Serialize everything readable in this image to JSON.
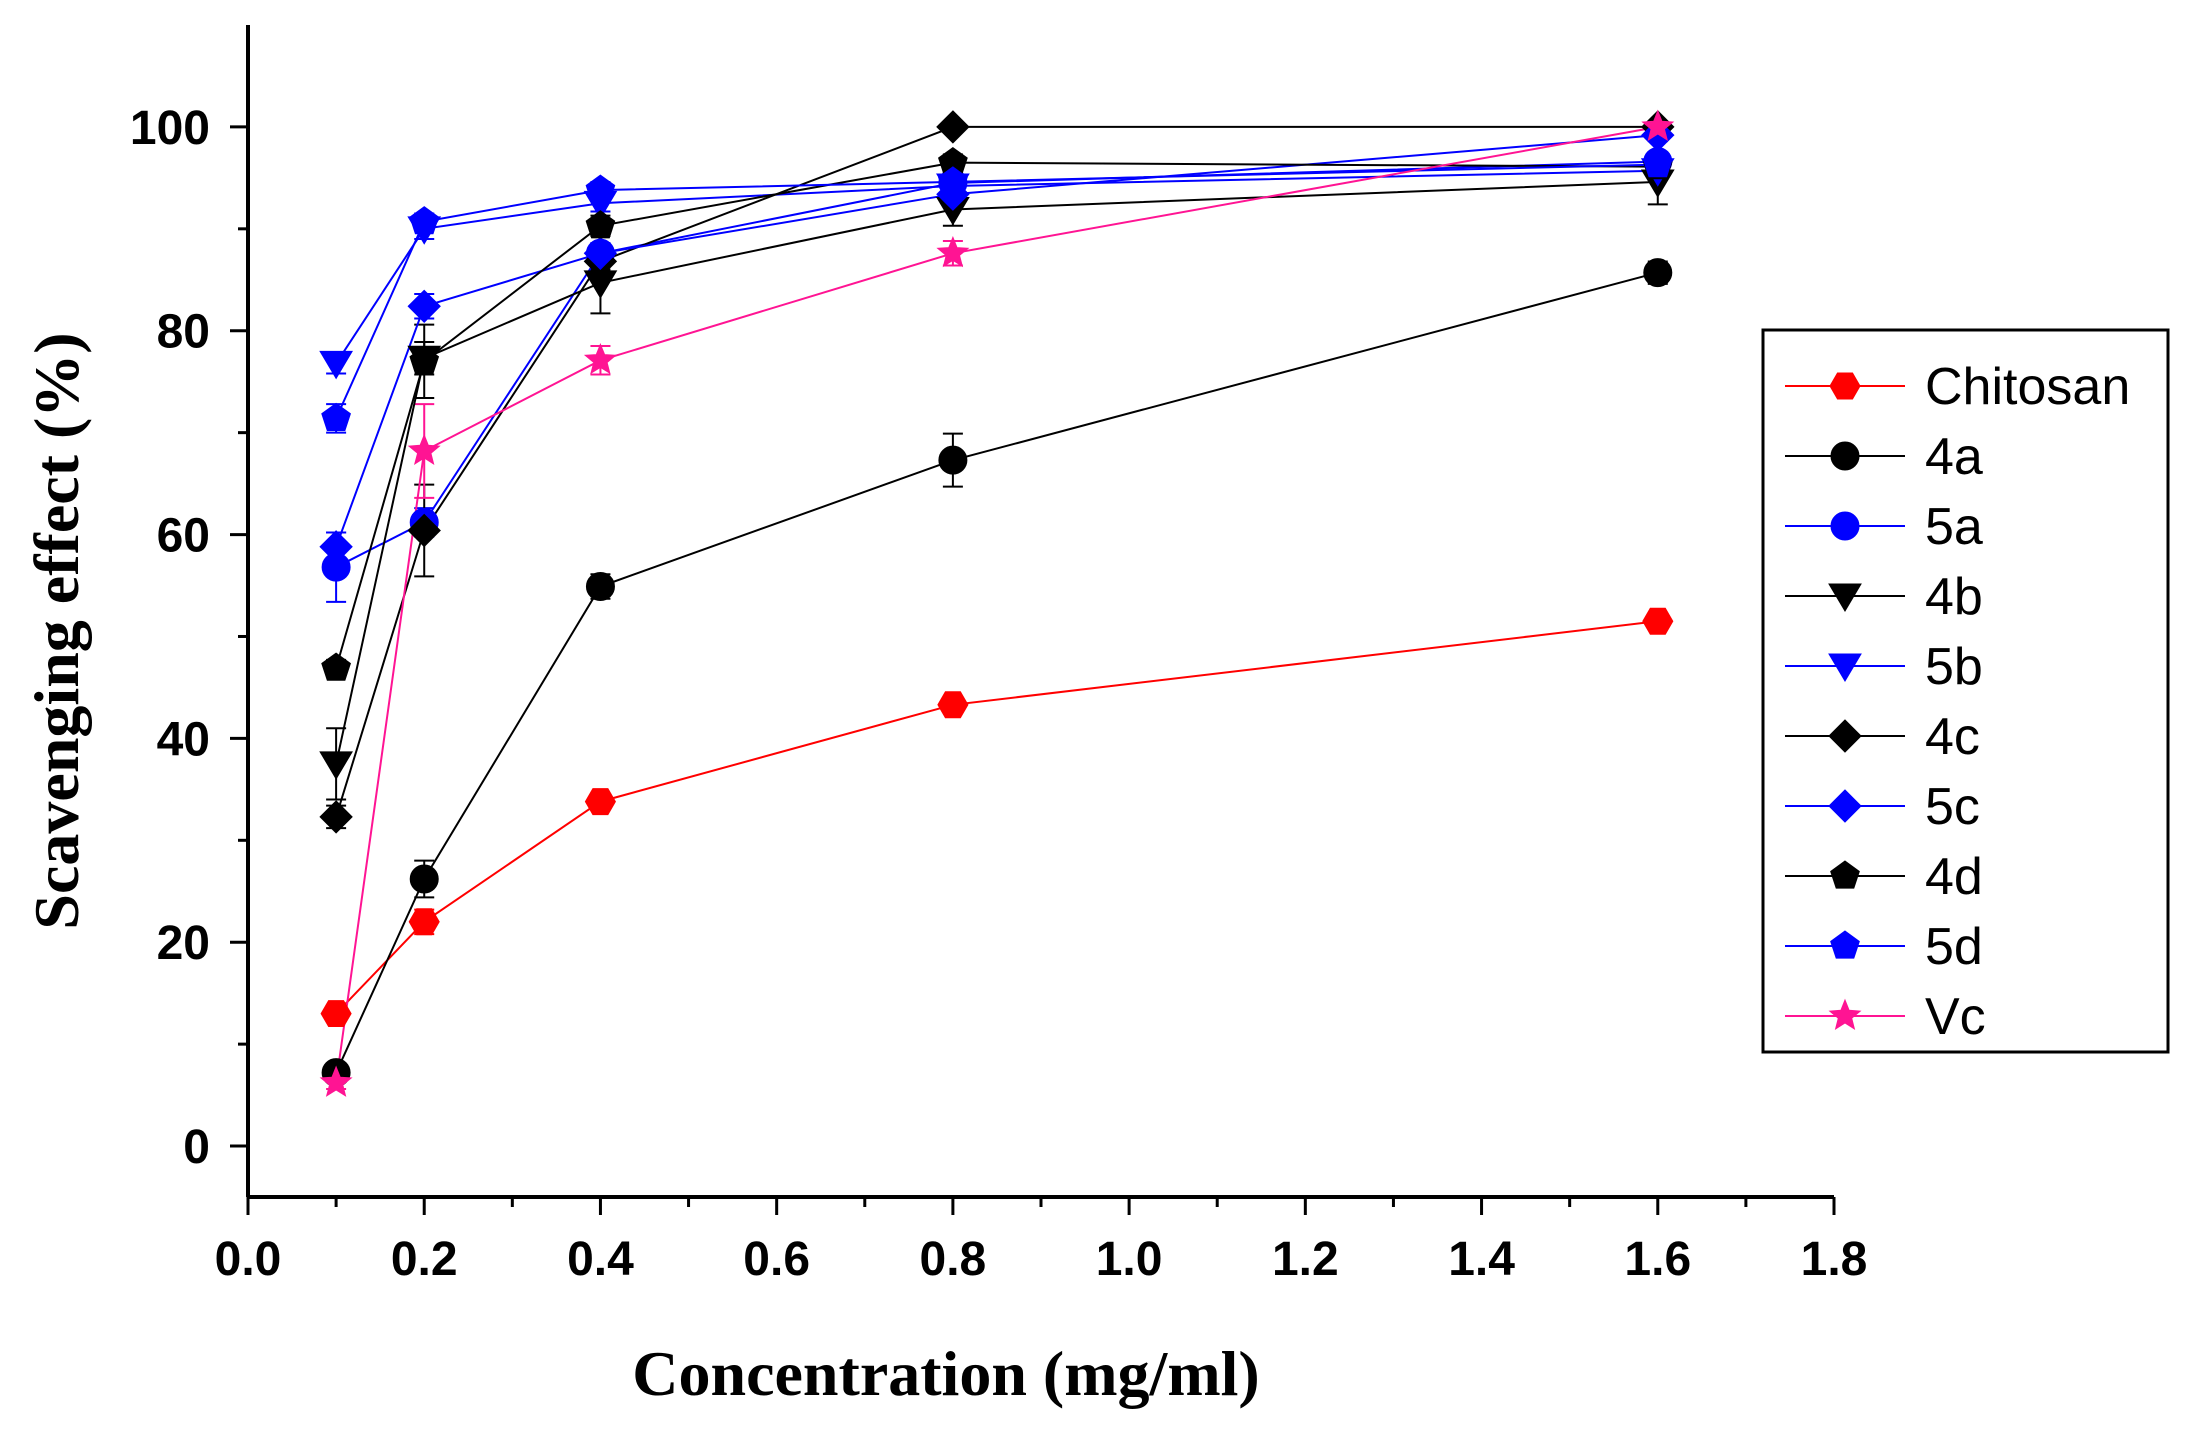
{
  "chart_data": {
    "type": "line",
    "title": "",
    "xlabel": "Concentration (mg/ml)",
    "ylabel": "Scavenging effect (%)",
    "xlim": [
      0.0,
      1.8
    ],
    "ylim": [
      -5,
      110
    ],
    "x_ticks": [
      0.0,
      0.2,
      0.4,
      0.6,
      0.8,
      1.0,
      1.2,
      1.4,
      1.6,
      1.8
    ],
    "x_tick_labels": [
      "0.0",
      "0.2",
      "0.4",
      "0.6",
      "0.8",
      "1.0",
      "1.2",
      "1.4",
      "1.6",
      "1.8"
    ],
    "y_ticks": [
      0,
      20,
      40,
      60,
      80,
      100
    ],
    "y_tick_labels": [
      "0",
      "20",
      "40",
      "60",
      "80",
      "100"
    ],
    "grid": false,
    "legend_position": "right",
    "x": [
      0.1,
      0.2,
      0.4,
      0.8,
      1.6
    ],
    "series": [
      {
        "name": "Chitosan",
        "color": "#ff0000",
        "marker": "hexagon",
        "values": [
          13.0,
          22.0,
          33.8,
          43.3,
          51.5
        ],
        "errors": [
          0.8,
          1.2,
          0.6,
          0.7,
          0.6
        ]
      },
      {
        "name": "4a",
        "color": "#000000",
        "marker": "circle",
        "values": [
          7.2,
          26.2,
          54.9,
          67.3,
          85.7
        ],
        "errors": [
          0.6,
          1.8,
          1.2,
          2.6,
          1.1
        ]
      },
      {
        "name": "5a",
        "color": "#0000ff",
        "marker": "circle",
        "values": [
          56.8,
          61.2,
          87.6,
          94.5,
          96.6
        ],
        "errors": [
          3.4,
          1.4,
          1.0,
          1.0,
          0.8
        ]
      },
      {
        "name": "4b",
        "color": "#000000",
        "marker": "triangle-down",
        "values": [
          37.5,
          77.3,
          84.7,
          91.9,
          94.6
        ],
        "errors": [
          3.5,
          1.6,
          3.0,
          1.6,
          2.2
        ]
      },
      {
        "name": "5b",
        "color": "#0000ff",
        "marker": "triangle-down",
        "values": [
          76.8,
          90.0,
          92.5,
          94.2,
          95.7
        ],
        "errors": [
          1.0,
          1.0,
          0.8,
          0.8,
          0.8
        ]
      },
      {
        "name": "4c",
        "color": "#000000",
        "marker": "diamond",
        "values": [
          32.3,
          60.4,
          86.8,
          100.0,
          100.0
        ],
        "errors": [
          1.1,
          4.5,
          0.8,
          0.4,
          0.4
        ]
      },
      {
        "name": "5c",
        "color": "#0000ff",
        "marker": "diamond",
        "values": [
          58.8,
          82.4,
          87.6,
          93.4,
          99.2
        ],
        "errors": [
          1.4,
          1.2,
          1.0,
          1.0,
          0.6
        ]
      },
      {
        "name": "4d",
        "color": "#000000",
        "marker": "pentagon",
        "values": [
          46.9,
          77.0,
          90.3,
          96.5,
          96.1
        ],
        "errors": [
          0.8,
          3.6,
          1.0,
          0.8,
          0.8
        ]
      },
      {
        "name": "5d",
        "color": "#0000ff",
        "marker": "pentagon",
        "values": [
          71.4,
          90.7,
          93.8,
          94.6,
          96.3
        ],
        "errors": [
          1.4,
          0.8,
          0.8,
          1.6,
          0.8
        ]
      },
      {
        "name": "Vc",
        "color": "#ff1493",
        "marker": "star",
        "values": [
          6.2,
          68.2,
          77.1,
          87.6,
          100.0
        ],
        "errors": [
          0.6,
          4.6,
          1.4,
          1.2,
          0.5
        ]
      }
    ]
  }
}
